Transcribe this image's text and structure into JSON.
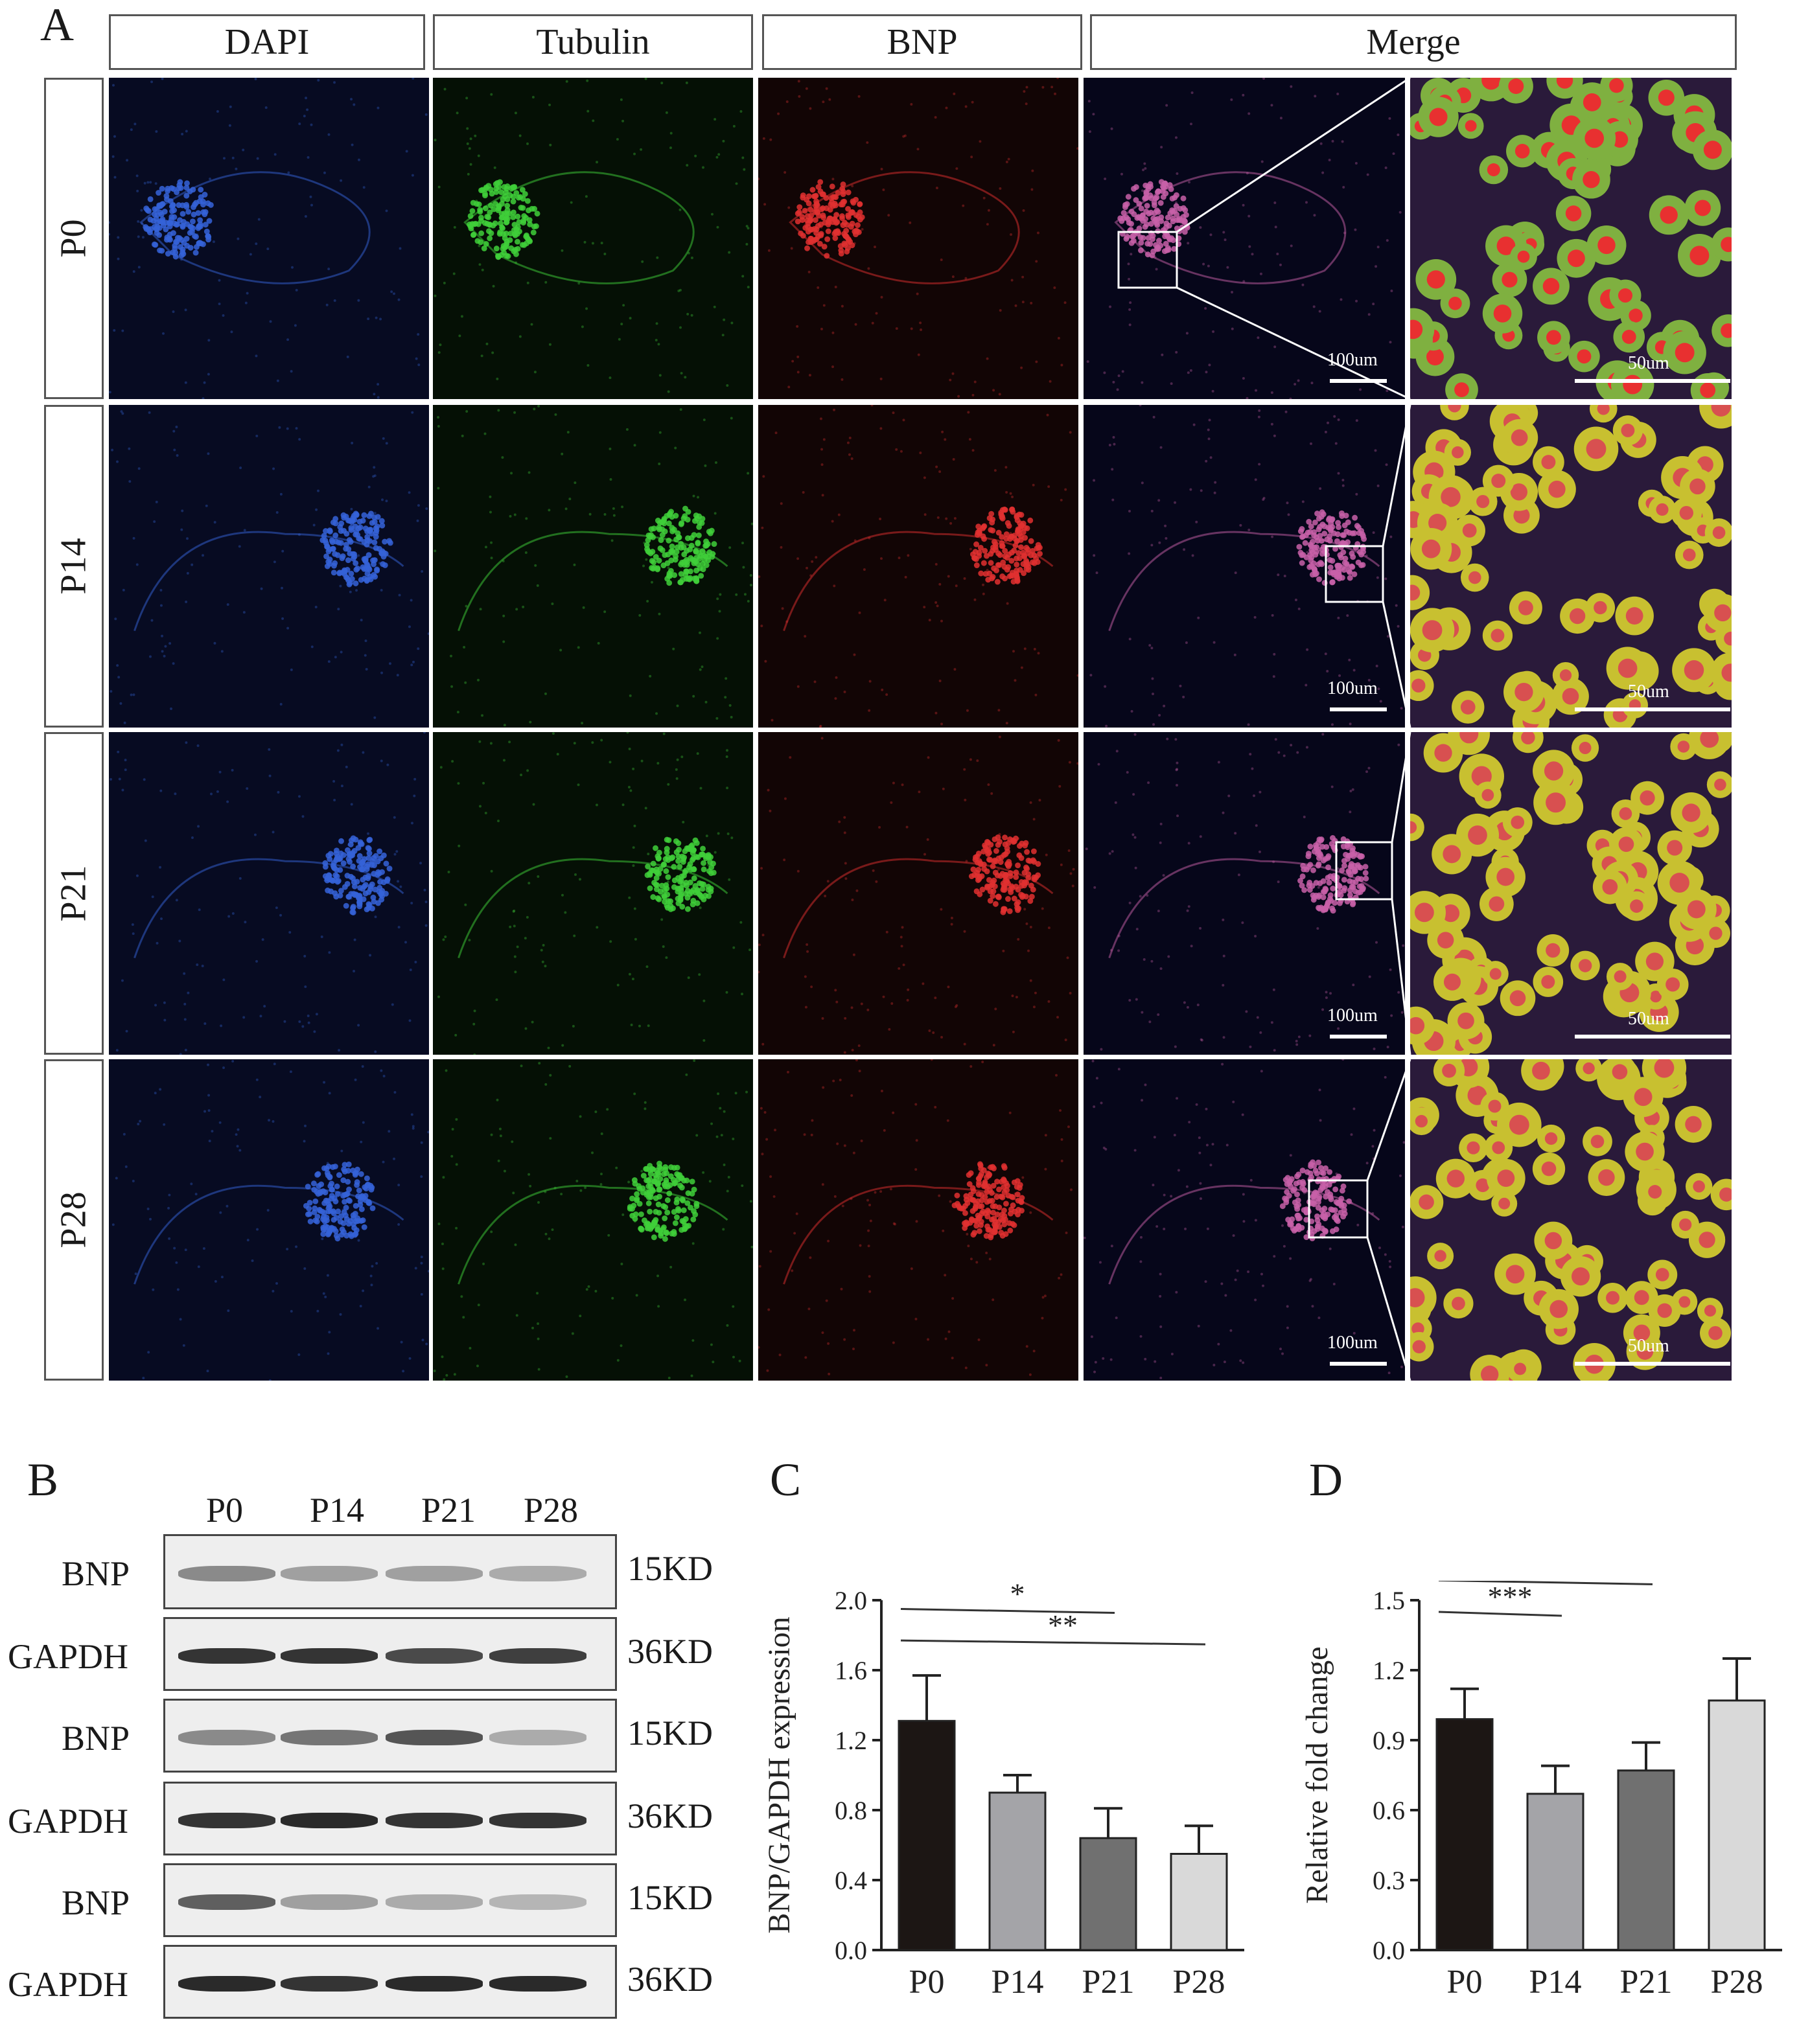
{
  "panel_a": {
    "letter": "A",
    "columns": [
      "DAPI",
      "Tubulin",
      "BNP",
      "Merge"
    ],
    "rows": [
      "P0",
      "P14",
      "P21",
      "P28"
    ],
    "scale_merge": "100um",
    "scale_zoom": "50um"
  },
  "panel_b": {
    "letter": "B",
    "lanes": [
      "P0",
      "P14",
      "P21",
      "P28"
    ],
    "blots": [
      {
        "label": "BNP",
        "kd": "15KD",
        "intensity": [
          0.45,
          0.35,
          0.35,
          0.3
        ]
      },
      {
        "label": "GAPDH",
        "kd": "36KD",
        "intensity": [
          0.85,
          0.85,
          0.75,
          0.8
        ]
      },
      {
        "label": "BNP",
        "kd": "15KD",
        "intensity": [
          0.45,
          0.55,
          0.7,
          0.3
        ]
      },
      {
        "label": "GAPDH",
        "kd": "36KD",
        "intensity": [
          0.85,
          0.9,
          0.85,
          0.85
        ]
      },
      {
        "label": "BNP",
        "kd": "15KD",
        "intensity": [
          0.65,
          0.35,
          0.3,
          0.25
        ]
      },
      {
        "label": "GAPDH",
        "kd": "36KD",
        "intensity": [
          0.9,
          0.85,
          0.9,
          0.9
        ]
      }
    ]
  },
  "chart_data": [
    {
      "letter": "C",
      "type": "bar",
      "categories": [
        "P0",
        "P14",
        "P21",
        "P28"
      ],
      "values": [
        1.31,
        0.9,
        0.64,
        0.55
      ],
      "errors": [
        0.26,
        0.1,
        0.17,
        0.16
      ],
      "ylabel": "BNP/GAPDH expression",
      "ylim": [
        0,
        2.0
      ],
      "yticks": [
        "0.0",
        "0.4",
        "0.8",
        "1.2",
        "1.6",
        "2.0"
      ],
      "bar_colors": [
        "#1c1614",
        "#a4a4a8",
        "#707070",
        "#d9d9d9"
      ],
      "significance": [
        {
          "from": 0,
          "to": 2,
          "label": "*"
        },
        {
          "from": 0,
          "to": 3,
          "label": "**"
        }
      ]
    },
    {
      "letter": "D",
      "type": "bar",
      "categories": [
        "P0",
        "P14",
        "P21",
        "P28"
      ],
      "values": [
        0.99,
        0.67,
        0.77,
        1.07
      ],
      "errors": [
        0.13,
        0.12,
        0.12,
        0.18
      ],
      "ylabel": "Relative fold change",
      "ylim": [
        0,
        1.5
      ],
      "yticks": [
        "0.0",
        "0.3",
        "0.6",
        "0.9",
        "1.2",
        "1.5"
      ],
      "bar_colors": [
        "#1c1614",
        "#a4a4a8",
        "#707070",
        "#d9d9d9"
      ],
      "significance": [
        {
          "from": 0,
          "to": 2,
          "label": "**"
        },
        {
          "from": 0,
          "to": 1,
          "label": "***"
        }
      ]
    }
  ]
}
